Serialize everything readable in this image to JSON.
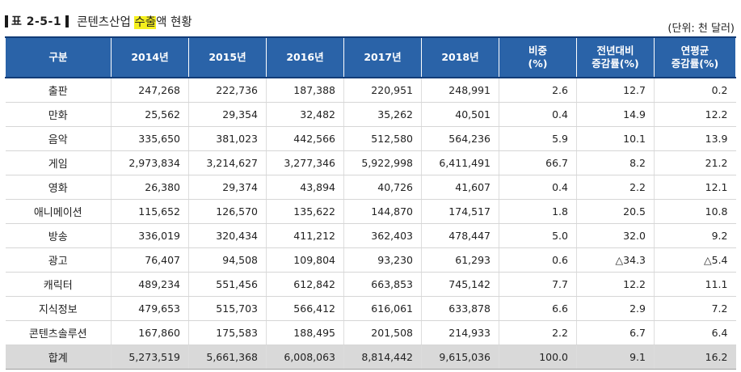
{
  "title": {
    "table_no": "표 2-5-1",
    "text_before": "콘텐츠산업 ",
    "text_highlight": "수출",
    "text_after": "액 현황"
  },
  "unit": "(단위: 천 달러)",
  "headers": [
    [
      "구분"
    ],
    [
      "2014년"
    ],
    [
      "2015년"
    ],
    [
      "2016년"
    ],
    [
      "2017년"
    ],
    [
      "2018년"
    ],
    [
      "비중",
      "(%)"
    ],
    [
      "전년대비",
      "증감률(%)"
    ],
    [
      "연평균",
      "증감률(%)"
    ]
  ],
  "rows": [
    [
      "출판",
      "247,268",
      "222,736",
      "187,388",
      "220,951",
      "248,991",
      "2.6",
      "12.7",
      "0.2"
    ],
    [
      "만화",
      "25,562",
      "29,354",
      "32,482",
      "35,262",
      "40,501",
      "0.4",
      "14.9",
      "12.2"
    ],
    [
      "음악",
      "335,650",
      "381,023",
      "442,566",
      "512,580",
      "564,236",
      "5.9",
      "10.1",
      "13.9"
    ],
    [
      "게임",
      "2,973,834",
      "3,214,627",
      "3,277,346",
      "5,922,998",
      "6,411,491",
      "66.7",
      "8.2",
      "21.2"
    ],
    [
      "영화",
      "26,380",
      "29,374",
      "43,894",
      "40,726",
      "41,607",
      "0.4",
      "2.2",
      "12.1"
    ],
    [
      "애니메이션",
      "115,652",
      "126,570",
      "135,622",
      "144,870",
      "174,517",
      "1.8",
      "20.5",
      "10.8"
    ],
    [
      "방송",
      "336,019",
      "320,434",
      "411,212",
      "362,403",
      "478,447",
      "5.0",
      "32.0",
      "9.2"
    ],
    [
      "광고",
      "76,407",
      "94,508",
      "109,804",
      "93,230",
      "61,293",
      "0.6",
      "△34.3",
      "△5.4"
    ],
    [
      "캐릭터",
      "489,234",
      "551,456",
      "612,842",
      "663,853",
      "745,142",
      "7.7",
      "12.2",
      "11.1"
    ],
    [
      "지식정보",
      "479,653",
      "515,703",
      "566,412",
      "616,061",
      "633,878",
      "6.6",
      "2.9",
      "7.2"
    ],
    [
      "콘텐츠솔루션",
      "167,860",
      "175,583",
      "188,495",
      "201,508",
      "214,933",
      "2.2",
      "6.7",
      "6.4"
    ]
  ],
  "total": [
    "합계",
    "5,273,519",
    "5,661,368",
    "6,008,063",
    "8,814,442",
    "9,615,036",
    "100.0",
    "9.1",
    "16.2"
  ],
  "colors": {
    "header_bg": "#2a63a8",
    "header_border": "#123c78",
    "highlight": "#f5ef1e",
    "total_bg": "#d9d9d9"
  }
}
